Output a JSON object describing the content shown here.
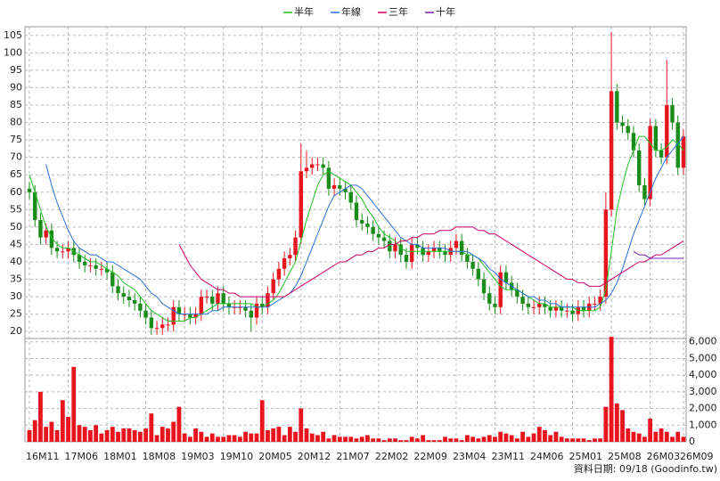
{
  "chart_data": {
    "type": "candlestick",
    "source_note": "資料日期: 09/18  (Goodinfo.tw)",
    "categories": [
      "16M11",
      null,
      null,
      null,
      null,
      null,
      null,
      "17M06",
      null,
      null,
      null,
      null,
      null,
      null,
      "18M01",
      null,
      null,
      null,
      null,
      null,
      null,
      "18M08",
      null,
      null,
      null,
      null,
      null,
      null,
      "19M03",
      null,
      null,
      null,
      null,
      null,
      null,
      "19M10",
      null,
      null,
      null,
      null,
      null,
      null,
      "20M05",
      null,
      null,
      null,
      null,
      null,
      null,
      "20M12",
      null,
      null,
      null,
      null,
      null,
      null,
      "21M07",
      null,
      null,
      null,
      null,
      null,
      null,
      "22M02",
      null,
      null,
      null,
      null,
      null,
      null,
      "22M09",
      null,
      null,
      null,
      null,
      null,
      null,
      "23M04",
      null,
      null,
      null,
      null,
      null,
      null,
      "23M11",
      null,
      null,
      null,
      null,
      null,
      null,
      "24M06",
      null,
      null,
      null,
      null,
      null,
      null,
      "25M01",
      null,
      null,
      null,
      null,
      null,
      null,
      "25M08",
      null,
      null,
      null,
      null,
      null,
      null,
      "26M03",
      null,
      null,
      null,
      null,
      null,
      "26M09"
    ],
    "open": [
      61,
      60,
      52,
      47,
      49,
      44,
      43,
      43,
      44,
      42,
      40,
      39,
      39,
      38,
      38,
      37,
      33,
      31,
      30,
      29,
      28,
      26,
      24,
      21,
      21,
      22,
      22,
      27,
      25,
      25,
      24,
      25,
      30,
      30,
      28,
      31,
      28,
      27,
      27,
      27,
      26,
      24,
      28,
      27,
      31,
      35,
      38,
      41,
      42,
      47,
      66,
      67,
      68,
      68,
      67,
      61,
      62,
      61,
      60,
      57,
      52,
      51,
      50,
      48,
      47,
      46,
      43,
      45,
      42,
      40,
      45,
      44,
      42,
      43,
      44,
      43,
      42,
      44,
      46,
      42,
      40,
      38,
      35,
      31,
      28,
      27,
      37,
      34,
      32,
      30,
      28,
      27,
      27,
      28,
      27,
      26,
      27,
      26,
      26,
      25,
      27,
      26,
      28,
      28,
      30,
      55,
      89,
      80,
      79,
      77,
      72,
      62,
      58,
      79,
      72,
      70,
      85,
      80,
      67
    ],
    "high": [
      63,
      62,
      54,
      51,
      51,
      46,
      45,
      46,
      46,
      44,
      42,
      41,
      41,
      40,
      40,
      39,
      35,
      33,
      32,
      31,
      30,
      28,
      26,
      23,
      24,
      24,
      29,
      29,
      27,
      27,
      27,
      32,
      32,
      32,
      33,
      33,
      30,
      29,
      29,
      29,
      28,
      30,
      30,
      33,
      37,
      40,
      43,
      44,
      49,
      74,
      72,
      70,
      70,
      70,
      69,
      64,
      64,
      63,
      62,
      59,
      54,
      53,
      52,
      50,
      49,
      48,
      47,
      47,
      44,
      47,
      47,
      46,
      45,
      46,
      46,
      45,
      46,
      48,
      48,
      44,
      42,
      40,
      37,
      33,
      30,
      39,
      39,
      36,
      34,
      32,
      30,
      29,
      30,
      30,
      29,
      29,
      29,
      28,
      28,
      29,
      29,
      30,
      30,
      32,
      60,
      106,
      91,
      82,
      81,
      79,
      74,
      64,
      81,
      81,
      74,
      98,
      87,
      82,
      78
    ],
    "low": [
      58,
      50,
      45,
      45,
      42,
      41,
      41,
      41,
      40,
      38,
      37,
      37,
      36,
      36,
      35,
      31,
      29,
      28,
      27,
      26,
      24,
      22,
      19,
      19,
      19,
      20,
      20,
      23,
      23,
      22,
      22,
      23,
      28,
      26,
      26,
      26,
      25,
      25,
      25,
      24,
      20,
      22,
      25,
      25,
      29,
      33,
      36,
      39,
      40,
      45,
      64,
      65,
      66,
      65,
      59,
      59,
      59,
      58,
      55,
      50,
      49,
      48,
      46,
      45,
      44,
      41,
      41,
      40,
      38,
      38,
      42,
      40,
      40,
      41,
      41,
      40,
      40,
      42,
      40,
      38,
      36,
      33,
      29,
      26,
      25,
      25,
      32,
      30,
      28,
      26,
      25,
      25,
      25,
      25,
      24,
      24,
      24,
      24,
      23,
      23,
      24,
      24,
      26,
      26,
      28,
      53,
      78,
      77,
      75,
      70,
      60,
      56,
      56,
      70,
      68,
      68,
      78,
      65,
      65
    ],
    "close": [
      60,
      52,
      47,
      49,
      44,
      43,
      43,
      44,
      42,
      40,
      39,
      39,
      38,
      38,
      37,
      33,
      31,
      30,
      29,
      28,
      26,
      24,
      21,
      21,
      22,
      22,
      27,
      25,
      25,
      24,
      25,
      30,
      30,
      28,
      31,
      28,
      27,
      27,
      27,
      26,
      24,
      28,
      27,
      31,
      35,
      38,
      41,
      42,
      47,
      66,
      67,
      68,
      68,
      67,
      61,
      62,
      61,
      60,
      57,
      52,
      51,
      50,
      48,
      47,
      46,
      43,
      45,
      42,
      40,
      45,
      44,
      42,
      43,
      44,
      43,
      42,
      44,
      46,
      42,
      40,
      38,
      35,
      31,
      28,
      27,
      37,
      34,
      32,
      30,
      28,
      27,
      27,
      28,
      27,
      26,
      27,
      26,
      26,
      25,
      27,
      26,
      28,
      28,
      30,
      55,
      89,
      80,
      79,
      77,
      72,
      62,
      58,
      79,
      72,
      70,
      85,
      80,
      67,
      76
    ],
    "volume": [
      700,
      1300,
      3000,
      900,
      1200,
      700,
      2500,
      1500,
      4500,
      1000,
      900,
      700,
      1000,
      500,
      700,
      900,
      600,
      800,
      800,
      700,
      600,
      800,
      1700,
      400,
      900,
      800,
      1200,
      2100,
      500,
      300,
      800,
      600,
      300,
      500,
      300,
      300,
      400,
      400,
      300,
      600,
      500,
      500,
      2500,
      700,
      800,
      900,
      400,
      900,
      600,
      2000,
      800,
      500,
      400,
      600,
      200,
      400,
      300,
      300,
      300,
      200,
      300,
      400,
      200,
      200,
      100,
      200,
      200,
      100,
      100,
      300,
      200,
      400,
      100,
      100,
      100,
      300,
      200,
      200,
      100,
      400,
      300,
      200,
      300,
      400,
      300,
      600,
      500,
      400,
      200,
      600,
      300,
      500,
      900,
      700,
      400,
      600,
      300,
      200,
      200,
      200,
      200,
      100,
      200,
      200,
      2100,
      6300,
      2300,
      1900,
      800,
      600,
      500,
      300,
      1400,
      600,
      800,
      600,
      300,
      600,
      300
    ],
    "up_color": "#e8141e",
    "down_color": "#1a8c1a",
    "volume_color": "#e8141e",
    "ylim": [
      18,
      107.5
    ],
    "yticks": [
      20,
      25,
      30,
      35,
      40,
      45,
      50,
      55,
      60,
      65,
      70,
      75,
      80,
      85,
      90,
      95,
      100,
      105
    ],
    "volume_ylim": [
      0,
      6200
    ],
    "volume_yticks": [
      0,
      {
        "value": 1000,
        "label": "1,000"
      },
      {
        "value": 2000,
        "label": "2,000"
      },
      {
        "value": 3000,
        "label": "3,000"
      },
      {
        "value": 4000,
        "label": "4,000"
      },
      {
        "value": 5000,
        "label": "5,000"
      },
      {
        "value": 6000,
        "label": "6,000"
      }
    ],
    "grid": true,
    "legend": "top",
    "series": [
      {
        "name": "半年",
        "color": "#22c022",
        "values": [
          65,
          60,
          55,
          50,
          47,
          45,
          44,
          44,
          43,
          42,
          41,
          40,
          40,
          39,
          38,
          37,
          36,
          34,
          33,
          32,
          30,
          28,
          26,
          25,
          24,
          23,
          23,
          23,
          23,
          24,
          24,
          25,
          26,
          27,
          28,
          28,
          28,
          28,
          28,
          28,
          28,
          27,
          27,
          28,
          29,
          31,
          34,
          37,
          40,
          46,
          52,
          57,
          62,
          65,
          66,
          65,
          64,
          63,
          62,
          60,
          58,
          55,
          53,
          50,
          48,
          47,
          46,
          44,
          43,
          43,
          43,
          43,
          43,
          43,
          43,
          43,
          43,
          43,
          43,
          42,
          42,
          41,
          39,
          37,
          35,
          33,
          32,
          32,
          32,
          31,
          30,
          29,
          28,
          28,
          27,
          27,
          27,
          27,
          27,
          26,
          26,
          26,
          26,
          27,
          32,
          43,
          55,
          62,
          68,
          72,
          76,
          76,
          74,
          72,
          72,
          73,
          75,
          74,
          72
        ]
      },
      {
        "name": "年線",
        "color": "#2a6fd6",
        "values": [
          null,
          null,
          null,
          68,
          62,
          57,
          53,
          49,
          46,
          44,
          43,
          42,
          42,
          41,
          40,
          40,
          39,
          38,
          37,
          36,
          35,
          33,
          31,
          30,
          28,
          27,
          26,
          25,
          25,
          25,
          25,
          25,
          25,
          26,
          26,
          27,
          27,
          27,
          27,
          27,
          27,
          27,
          27,
          27,
          28,
          29,
          30,
          31,
          33,
          36,
          40,
          44,
          48,
          52,
          56,
          59,
          60,
          61,
          62,
          62,
          61,
          59,
          57,
          55,
          53,
          51,
          49,
          47,
          46,
          45,
          45,
          44,
          44,
          44,
          44,
          44,
          43,
          43,
          43,
          43,
          42,
          41,
          40,
          38,
          37,
          35,
          34,
          33,
          32,
          31,
          30,
          30,
          29,
          29,
          28,
          28,
          27,
          27,
          27,
          27,
          27,
          27,
          27,
          28,
          29,
          31,
          34,
          38,
          43,
          48,
          52,
          56,
          60,
          64,
          67,
          70,
          72,
          74,
          76
        ]
      },
      {
        "name": "三年",
        "color": "#cc0066",
        "values": [
          null,
          null,
          null,
          null,
          null,
          null,
          null,
          null,
          null,
          null,
          null,
          null,
          null,
          null,
          null,
          null,
          null,
          null,
          null,
          null,
          null,
          null,
          null,
          null,
          null,
          null,
          null,
          45,
          42,
          39,
          37,
          35,
          34,
          33,
          32,
          32,
          31,
          31,
          30,
          30,
          30,
          30,
          30,
          30,
          30,
          30,
          30,
          31,
          32,
          33,
          34,
          35,
          36,
          37,
          38,
          39,
          40,
          40,
          41,
          42,
          42,
          43,
          43,
          44,
          44,
          45,
          45,
          46,
          46,
          47,
          47,
          48,
          48,
          48,
          49,
          49,
          49,
          50,
          50,
          50,
          50,
          49,
          49,
          48,
          48,
          47,
          46,
          45,
          44,
          43,
          42,
          41,
          40,
          39,
          38,
          37,
          36,
          35,
          35,
          34,
          34,
          33,
          33,
          33,
          34,
          35,
          36,
          37,
          38,
          39,
          40,
          40,
          41,
          42,
          42,
          43,
          44,
          45,
          46
        ]
      },
      {
        "name": "十年",
        "color": "#7a1fa8",
        "values": [
          null,
          null,
          null,
          null,
          null,
          null,
          null,
          null,
          null,
          null,
          null,
          null,
          null,
          null,
          null,
          null,
          null,
          null,
          null,
          null,
          null,
          null,
          null,
          null,
          null,
          null,
          null,
          null,
          null,
          null,
          null,
          null,
          null,
          null,
          null,
          null,
          null,
          null,
          null,
          null,
          null,
          null,
          null,
          null,
          null,
          null,
          null,
          null,
          null,
          null,
          null,
          null,
          null,
          null,
          null,
          null,
          null,
          null,
          null,
          null,
          null,
          null,
          null,
          null,
          null,
          null,
          null,
          null,
          null,
          null,
          null,
          null,
          null,
          null,
          null,
          null,
          null,
          null,
          null,
          null,
          null,
          null,
          null,
          null,
          null,
          null,
          null,
          null,
          null,
          null,
          null,
          null,
          null,
          null,
          null,
          null,
          null,
          null,
          null,
          null,
          null,
          null,
          null,
          null,
          null,
          null,
          null,
          null,
          null,
          43,
          42,
          42,
          41,
          41,
          41,
          41,
          41,
          41,
          41
        ]
      }
    ]
  }
}
